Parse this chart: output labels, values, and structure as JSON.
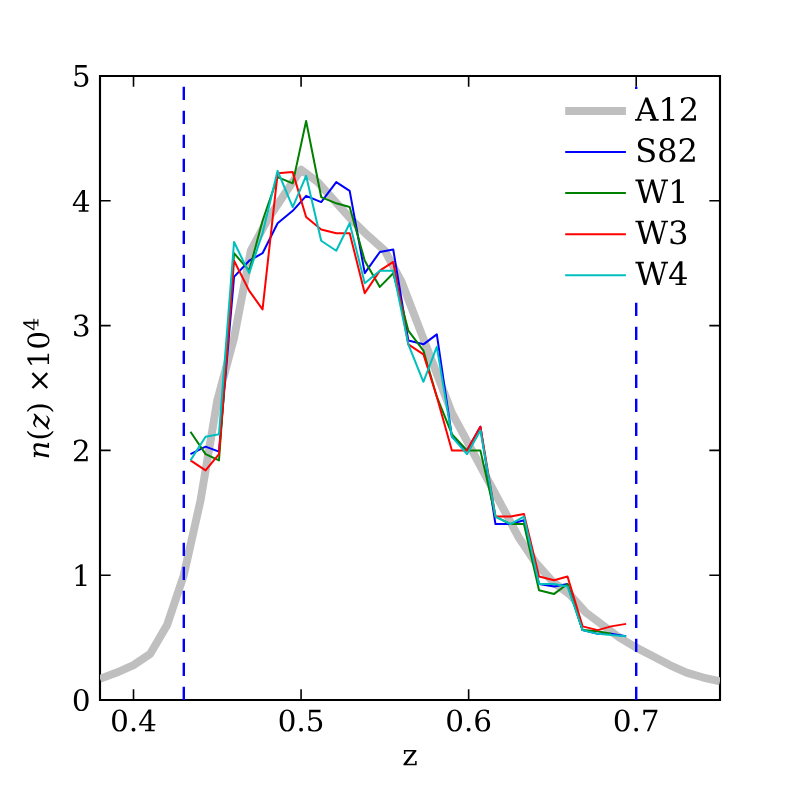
{
  "chart_data": {
    "type": "line",
    "xlabel": "z",
    "ylabel": "*n*(*z*) ×10$^{4}$",
    "xlim": [
      0.38,
      0.75
    ],
    "ylim": [
      0,
      5
    ],
    "xticks": [
      0.4,
      0.5,
      0.6,
      0.7
    ],
    "yticks": [
      0,
      1,
      2,
      3,
      4,
      5
    ],
    "grid": false,
    "legend": "top right",
    "marker": "none",
    "line_style": "solid",
    "ref_lines": [
      {
        "axis": "x",
        "value": 0.43,
        "color": "#0000ff",
        "line_style": "dashed"
      },
      {
        "axis": "x",
        "value": 0.7,
        "color": "#0000ff",
        "line_style": "dashed"
      }
    ],
    "series": [
      {
        "name": "A12",
        "color": "#bfbfbf",
        "x": [
          0.38,
          0.39,
          0.4,
          0.41,
          0.42,
          0.43,
          0.44,
          0.45,
          0.46,
          0.47,
          0.48,
          0.49,
          0.5,
          0.51,
          0.52,
          0.53,
          0.54,
          0.55,
          0.56,
          0.57,
          0.58,
          0.59,
          0.6,
          0.61,
          0.62,
          0.63,
          0.64,
          0.65,
          0.66,
          0.67,
          0.68,
          0.69,
          0.7,
          0.71,
          0.72,
          0.73,
          0.74,
          0.75
        ],
        "values": [
          0.17,
          0.22,
          0.28,
          0.37,
          0.6,
          1.0,
          1.6,
          2.4,
          2.9,
          3.6,
          3.85,
          4.05,
          4.25,
          4.15,
          4.0,
          3.85,
          3.72,
          3.6,
          3.35,
          3.0,
          2.65,
          2.3,
          2.05,
          1.8,
          1.55,
          1.3,
          1.1,
          0.95,
          0.85,
          0.7,
          0.6,
          0.5,
          0.42,
          0.35,
          0.28,
          0.22,
          0.18,
          0.15
        ]
      },
      {
        "name": "S82",
        "color": "#0000ff",
        "x": [
          0.434,
          0.443,
          0.451,
          0.46,
          0.469,
          0.477,
          0.486,
          0.495,
          0.503,
          0.512,
          0.521,
          0.529,
          0.538,
          0.547,
          0.555,
          0.564,
          0.573,
          0.581,
          0.59,
          0.599,
          0.607,
          0.616,
          0.625,
          0.633,
          0.642,
          0.651,
          0.659,
          0.668,
          0.677,
          0.685,
          0.694
        ],
        "values": [
          1.97,
          2.03,
          1.99,
          3.39,
          3.52,
          3.58,
          3.82,
          3.92,
          4.04,
          3.99,
          4.15,
          4.08,
          3.42,
          3.59,
          3.61,
          2.88,
          2.85,
          2.93,
          2.11,
          2.0,
          2.19,
          1.41,
          1.41,
          1.44,
          0.93,
          0.91,
          0.93,
          0.56,
          0.53,
          0.53,
          0.51
        ]
      },
      {
        "name": "W1",
        "color": "#008000",
        "x": [
          0.434,
          0.443,
          0.451,
          0.46,
          0.469,
          0.477,
          0.486,
          0.495,
          0.503,
          0.512,
          0.521,
          0.529,
          0.538,
          0.547,
          0.555,
          0.564,
          0.573,
          0.581,
          0.59,
          0.599,
          0.607,
          0.616,
          0.625,
          0.633,
          0.642,
          0.651,
          0.659,
          0.668,
          0.677,
          0.685
        ],
        "values": [
          2.15,
          1.97,
          1.92,
          3.58,
          3.44,
          3.84,
          4.19,
          4.14,
          4.64,
          4.03,
          3.98,
          3.95,
          3.52,
          3.31,
          3.42,
          2.96,
          2.8,
          2.43,
          2.13,
          2.0,
          2.0,
          1.47,
          1.41,
          1.41,
          0.88,
          0.85,
          0.93,
          0.56,
          0.55,
          0.53
        ]
      },
      {
        "name": "W3",
        "color": "#ff0000",
        "x": [
          0.434,
          0.443,
          0.451,
          0.46,
          0.469,
          0.477,
          0.486,
          0.495,
          0.503,
          0.512,
          0.521,
          0.529,
          0.538,
          0.547,
          0.555,
          0.564,
          0.573,
          0.581,
          0.59,
          0.599,
          0.607,
          0.616,
          0.625,
          0.633,
          0.642,
          0.651,
          0.659,
          0.668,
          0.677,
          0.685,
          0.694
        ],
        "values": [
          1.92,
          1.84,
          1.97,
          3.52,
          3.28,
          3.13,
          4.22,
          4.23,
          3.87,
          3.77,
          3.74,
          3.74,
          3.26,
          3.44,
          3.51,
          2.85,
          2.77,
          2.43,
          2.0,
          2.0,
          2.19,
          1.47,
          1.47,
          1.49,
          0.99,
          0.96,
          0.99,
          0.59,
          0.56,
          0.59,
          0.61
        ]
      },
      {
        "name": "W4",
        "color": "#00bfbf",
        "x": [
          0.434,
          0.443,
          0.451,
          0.46,
          0.469,
          0.477,
          0.486,
          0.495,
          0.503,
          0.512,
          0.521,
          0.529,
          0.538,
          0.547,
          0.555,
          0.564,
          0.573,
          0.581,
          0.59,
          0.599,
          0.607,
          0.616,
          0.625,
          0.633,
          0.642,
          0.651,
          0.659,
          0.668,
          0.677,
          0.685,
          0.694
        ],
        "values": [
          1.92,
          2.11,
          2.13,
          3.67,
          3.42,
          3.74,
          4.24,
          3.95,
          4.2,
          3.68,
          3.6,
          3.82,
          3.34,
          3.44,
          3.44,
          2.85,
          2.55,
          2.83,
          2.11,
          1.97,
          2.16,
          1.47,
          1.41,
          1.47,
          0.93,
          0.93,
          0.91,
          0.56,
          0.53,
          0.52,
          0.51
        ]
      }
    ]
  }
}
